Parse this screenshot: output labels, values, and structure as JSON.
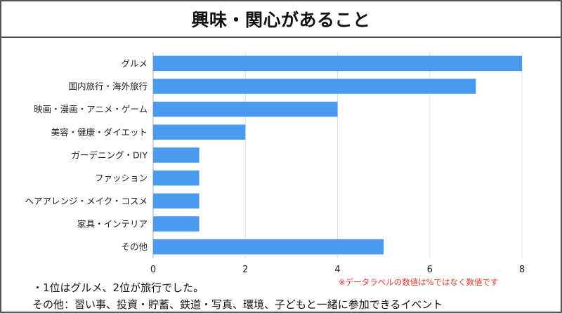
{
  "title": "興味・関心があること",
  "chart_data": {
    "type": "bar",
    "orientation": "horizontal",
    "categories": [
      "グルメ",
      "国内旅行・海外旅行",
      "映画・漫画・アニメ・ゲーム",
      "美容・健康・ダイエット",
      "ガーデニング・DIY",
      "ファッション",
      "ヘアアレンジ・メイク・コスメ",
      "家具・インテリア",
      "その他"
    ],
    "values": [
      8,
      7,
      4,
      2,
      1,
      1,
      1,
      1,
      5
    ],
    "xlim": [
      0,
      8
    ],
    "xticks": [
      "0",
      "2",
      "4",
      "6",
      "8"
    ],
    "xtick_values": [
      0,
      2,
      4,
      6,
      8
    ],
    "grid": "vertical",
    "bar_color": "#4a9af0",
    "grid_color": "#dddddd"
  },
  "note": "※データラベルの数値は%ではなく数値です",
  "footer": {
    "line1": "・1位はグルメ、2位が旅行でした。",
    "line2": "その他：習い事、投資・貯蓄、鉄道・写真、環境、子どもと一緒に参加できるイベント"
  }
}
